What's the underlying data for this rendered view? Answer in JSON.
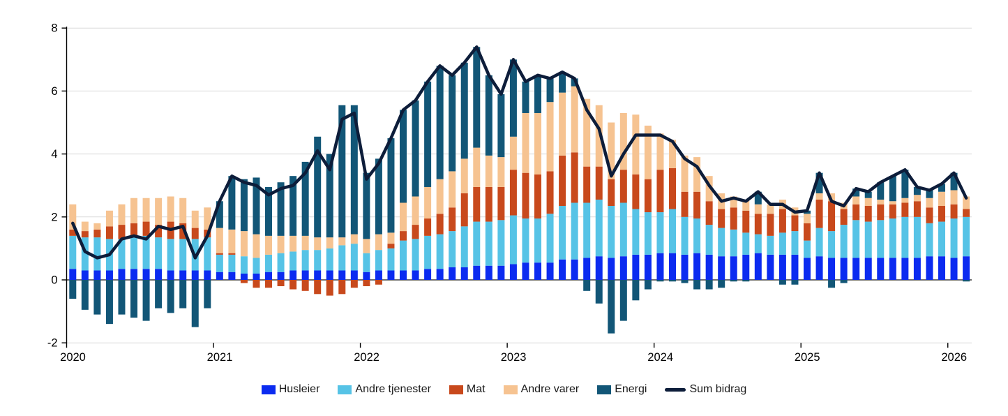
{
  "chart_data": {
    "type": "bar",
    "subtype": "stacked-bar-with-line-overlay",
    "title": "",
    "frequency": "monthly",
    "x_start": "2020-01",
    "x_end": "2026-02",
    "n_months": 74,
    "x_tick_labels": [
      "2020",
      "2021",
      "2022",
      "2023",
      "2024",
      "2025",
      "2026"
    ],
    "y_tick_labels": [
      "8",
      "6",
      "4",
      "2",
      "0",
      "-2"
    ],
    "y_ticks": [
      8,
      6,
      4,
      2,
      0,
      -2
    ],
    "ylim": [
      -2,
      8
    ],
    "grid": "horizontal",
    "legend_position": "bottom-center",
    "bar_series": [
      {
        "name": "Husleier",
        "color": "#0b2bf0",
        "values": [
          0.35,
          0.3,
          0.3,
          0.3,
          0.35,
          0.35,
          0.35,
          0.35,
          0.3,
          0.3,
          0.3,
          0.3,
          0.25,
          0.25,
          0.2,
          0.2,
          0.25,
          0.25,
          0.3,
          0.3,
          0.3,
          0.3,
          0.3,
          0.3,
          0.25,
          0.3,
          0.3,
          0.3,
          0.3,
          0.35,
          0.35,
          0.4,
          0.4,
          0.45,
          0.45,
          0.45,
          0.5,
          0.55,
          0.55,
          0.55,
          0.65,
          0.65,
          0.7,
          0.75,
          0.7,
          0.75,
          0.8,
          0.8,
          0.85,
          0.85,
          0.8,
          0.85,
          0.8,
          0.75,
          0.75,
          0.8,
          0.85,
          0.8,
          0.8,
          0.8,
          0.7,
          0.75,
          0.7,
          0.7,
          0.7,
          0.7,
          0.7,
          0.7,
          0.7,
          0.7,
          0.75,
          0.75,
          0.7,
          0.75
        ]
      },
      {
        "name": "Andre tjenester",
        "color": "#56c3e6",
        "values": [
          1.05,
          1.05,
          1.05,
          1.0,
          0.95,
          1.0,
          1.05,
          1.0,
          1.0,
          1.0,
          1.0,
          1.05,
          0.55,
          0.55,
          0.55,
          0.5,
          0.55,
          0.6,
          0.6,
          0.65,
          0.65,
          0.7,
          0.8,
          0.85,
          0.6,
          0.65,
          0.7,
          0.95,
          1.0,
          1.05,
          1.1,
          1.15,
          1.3,
          1.4,
          1.4,
          1.45,
          1.55,
          1.4,
          1.4,
          1.55,
          1.7,
          1.8,
          1.75,
          1.8,
          1.65,
          1.7,
          1.45,
          1.35,
          1.3,
          1.4,
          1.2,
          1.1,
          0.95,
          0.9,
          0.85,
          0.7,
          0.6,
          0.6,
          0.7,
          0.75,
          0.55,
          0.9,
          0.85,
          1.05,
          1.2,
          1.15,
          1.2,
          1.25,
          1.3,
          1.3,
          1.05,
          1.1,
          1.25,
          1.25
        ]
      },
      {
        "name": "Mat",
        "color": "#c8491c",
        "values": [
          0.2,
          0.2,
          0.25,
          0.4,
          0.45,
          0.45,
          0.45,
          0.4,
          0.55,
          0.5,
          0.35,
          0.25,
          0.05,
          0.05,
          -0.1,
          -0.25,
          -0.25,
          -0.2,
          -0.3,
          -0.35,
          -0.45,
          -0.5,
          -0.45,
          -0.25,
          -0.2,
          -0.15,
          0.15,
          0.3,
          0.45,
          0.55,
          0.65,
          0.75,
          1.05,
          1.1,
          1.1,
          1.05,
          1.45,
          1.45,
          1.4,
          1.35,
          1.6,
          1.6,
          1.15,
          1.05,
          0.85,
          1.05,
          1.1,
          1.05,
          1.35,
          1.3,
          0.8,
          0.85,
          0.75,
          0.6,
          0.7,
          0.7,
          0.65,
          0.7,
          0.75,
          0.5,
          0.55,
          0.9,
          0.95,
          0.5,
          0.5,
          0.5,
          0.5,
          0.45,
          0.45,
          0.5,
          0.5,
          0.5,
          0.45,
          0.25
        ]
      },
      {
        "name": "Andre varer",
        "color": "#f6c391",
        "values": [
          0.8,
          0.3,
          0.2,
          0.5,
          0.65,
          0.8,
          0.75,
          0.85,
          0.8,
          0.8,
          0.55,
          0.7,
          0.8,
          0.75,
          0.8,
          0.75,
          0.6,
          0.55,
          0.5,
          0.45,
          0.4,
          0.35,
          0.25,
          0.3,
          0.45,
          0.5,
          0.35,
          0.9,
          0.9,
          1.0,
          1.1,
          1.15,
          1.1,
          1.25,
          1.0,
          0.95,
          1.05,
          1.9,
          1.95,
          2.2,
          2.0,
          2.1,
          2.15,
          1.95,
          1.8,
          1.8,
          1.9,
          1.7,
          1.15,
          0.9,
          1.15,
          1.1,
          0.8,
          0.5,
          0.35,
          0.35,
          0.3,
          0.3,
          0.3,
          0.25,
          0.3,
          0.2,
          0.25,
          0.2,
          0.25,
          0.25,
          0.15,
          0.1,
          0.15,
          0.2,
          0.3,
          0.45,
          0.45,
          0.4
        ]
      },
      {
        "name": "Energi",
        "color": "#125677",
        "values": [
          -0.6,
          -0.95,
          -1.1,
          -1.4,
          -1.1,
          -1.2,
          -1.3,
          -0.9,
          -1.05,
          -0.9,
          -1.5,
          -0.9,
          0.85,
          1.7,
          1.65,
          1.8,
          1.55,
          1.7,
          1.9,
          2.35,
          3.2,
          2.65,
          4.2,
          4.1,
          2.1,
          2.4,
          3.0,
          2.95,
          3.05,
          3.35,
          3.6,
          3.05,
          3.05,
          3.2,
          2.55,
          2.0,
          2.45,
          1.0,
          1.2,
          0.75,
          0.65,
          0.25,
          -0.35,
          -0.75,
          -1.7,
          -1.3,
          -0.65,
          -0.3,
          -0.05,
          -0.05,
          -0.1,
          -0.3,
          -0.3,
          -0.25,
          -0.05,
          -0.05,
          0.4,
          0.0,
          -0.15,
          -0.15,
          0.1,
          0.65,
          -0.25,
          -0.1,
          0.25,
          0.2,
          0.55,
          0.8,
          0.9,
          0.25,
          0.25,
          0.25,
          0.55,
          -0.05
        ]
      }
    ],
    "line_series": {
      "name": "Sum bidrag",
      "color": "#0d1d3a",
      "values": [
        1.8,
        0.9,
        0.7,
        0.8,
        1.3,
        1.4,
        1.3,
        1.7,
        1.6,
        1.7,
        0.7,
        1.4,
        2.5,
        3.3,
        3.1,
        3.0,
        2.7,
        2.9,
        3.0,
        3.4,
        4.1,
        3.5,
        5.1,
        5.3,
        3.2,
        3.7,
        4.5,
        5.4,
        5.7,
        6.3,
        6.8,
        6.5,
        6.9,
        7.4,
        6.5,
        5.9,
        7.0,
        6.3,
        6.5,
        6.4,
        6.6,
        6.4,
        5.4,
        4.8,
        3.3,
        4.0,
        4.6,
        4.6,
        4.6,
        4.4,
        3.85,
        3.6,
        3.0,
        2.5,
        2.6,
        2.5,
        2.8,
        2.4,
        2.4,
        2.15,
        2.2,
        3.4,
        2.5,
        2.35,
        2.9,
        2.8,
        3.1,
        3.3,
        3.5,
        2.95,
        2.85,
        3.05,
        3.4,
        2.6
      ]
    },
    "legend_items": [
      "Husleier",
      "Andre tjenester",
      "Mat",
      "Andre varer",
      "Energi",
      "Sum bidrag"
    ]
  },
  "colors": {
    "background": "#ffffff",
    "grid_line": "#d9d9d9",
    "zero_line": "#595959",
    "axis_line": "#000000",
    "tick_text": "#000000"
  }
}
